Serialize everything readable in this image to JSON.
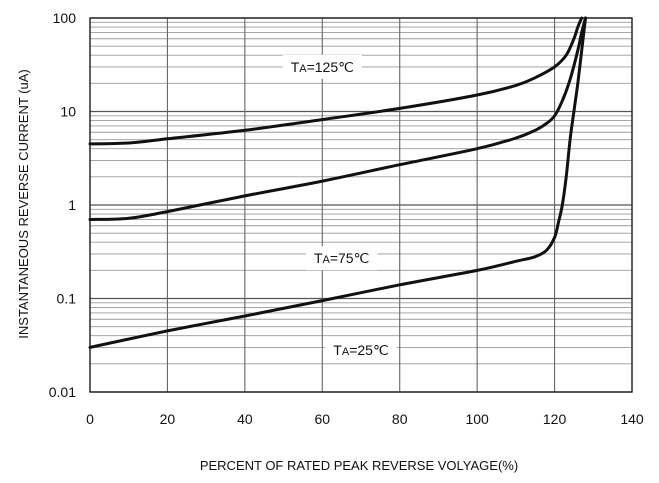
{
  "chart_data": {
    "type": "line",
    "xlabel": "PERCENT OF RATED PEAK REVERSE VOLYAGE(%)",
    "ylabel": "INSTANTANEOUS REVERSE CURRENT (uA)",
    "xlim": [
      0,
      140
    ],
    "ylim": [
      0.01,
      100
    ],
    "yscale": "log",
    "grid": true,
    "x_ticks": [
      "0",
      "20",
      "40",
      "60",
      "80",
      "100",
      "120",
      "140"
    ],
    "y_ticks": [
      "0.01",
      "0.1",
      "1",
      "10",
      "100"
    ],
    "series": [
      {
        "name_parts": [
          "T",
          "A",
          "=125℃"
        ],
        "points": [
          [
            0,
            4.5
          ],
          [
            10,
            4.6
          ],
          [
            20,
            5.1
          ],
          [
            40,
            6.3
          ],
          [
            60,
            8.2
          ],
          [
            80,
            10.8
          ],
          [
            100,
            15
          ],
          [
            110,
            19
          ],
          [
            115,
            23
          ],
          [
            120,
            30
          ],
          [
            123,
            40
          ],
          [
            125,
            60
          ],
          [
            126,
            80
          ],
          [
            127,
            100
          ]
        ]
      },
      {
        "name_parts": [
          "T",
          "A",
          "=75℃"
        ],
        "points": [
          [
            0,
            0.7
          ],
          [
            10,
            0.72
          ],
          [
            20,
            0.85
          ],
          [
            40,
            1.25
          ],
          [
            60,
            1.8
          ],
          [
            80,
            2.7
          ],
          [
            100,
            4
          ],
          [
            110,
            5.2
          ],
          [
            115,
            6.3
          ],
          [
            118,
            7.5
          ],
          [
            120,
            9
          ],
          [
            122,
            13
          ],
          [
            124,
            22
          ],
          [
            126,
            45
          ],
          [
            127,
            70
          ],
          [
            128,
            100
          ]
        ]
      },
      {
        "name_parts": [
          "T",
          "A",
          "=25℃"
        ],
        "points": [
          [
            0,
            0.03
          ],
          [
            20,
            0.045
          ],
          [
            40,
            0.065
          ],
          [
            60,
            0.095
          ],
          [
            80,
            0.14
          ],
          [
            100,
            0.2
          ],
          [
            110,
            0.25
          ],
          [
            115,
            0.28
          ],
          [
            118,
            0.33
          ],
          [
            120,
            0.45
          ],
          [
            121,
            0.65
          ],
          [
            122,
            1
          ],
          [
            123,
            2
          ],
          [
            124,
            5
          ],
          [
            125,
            10
          ],
          [
            126,
            20
          ],
          [
            127,
            45
          ],
          [
            128,
            100
          ]
        ]
      }
    ]
  }
}
